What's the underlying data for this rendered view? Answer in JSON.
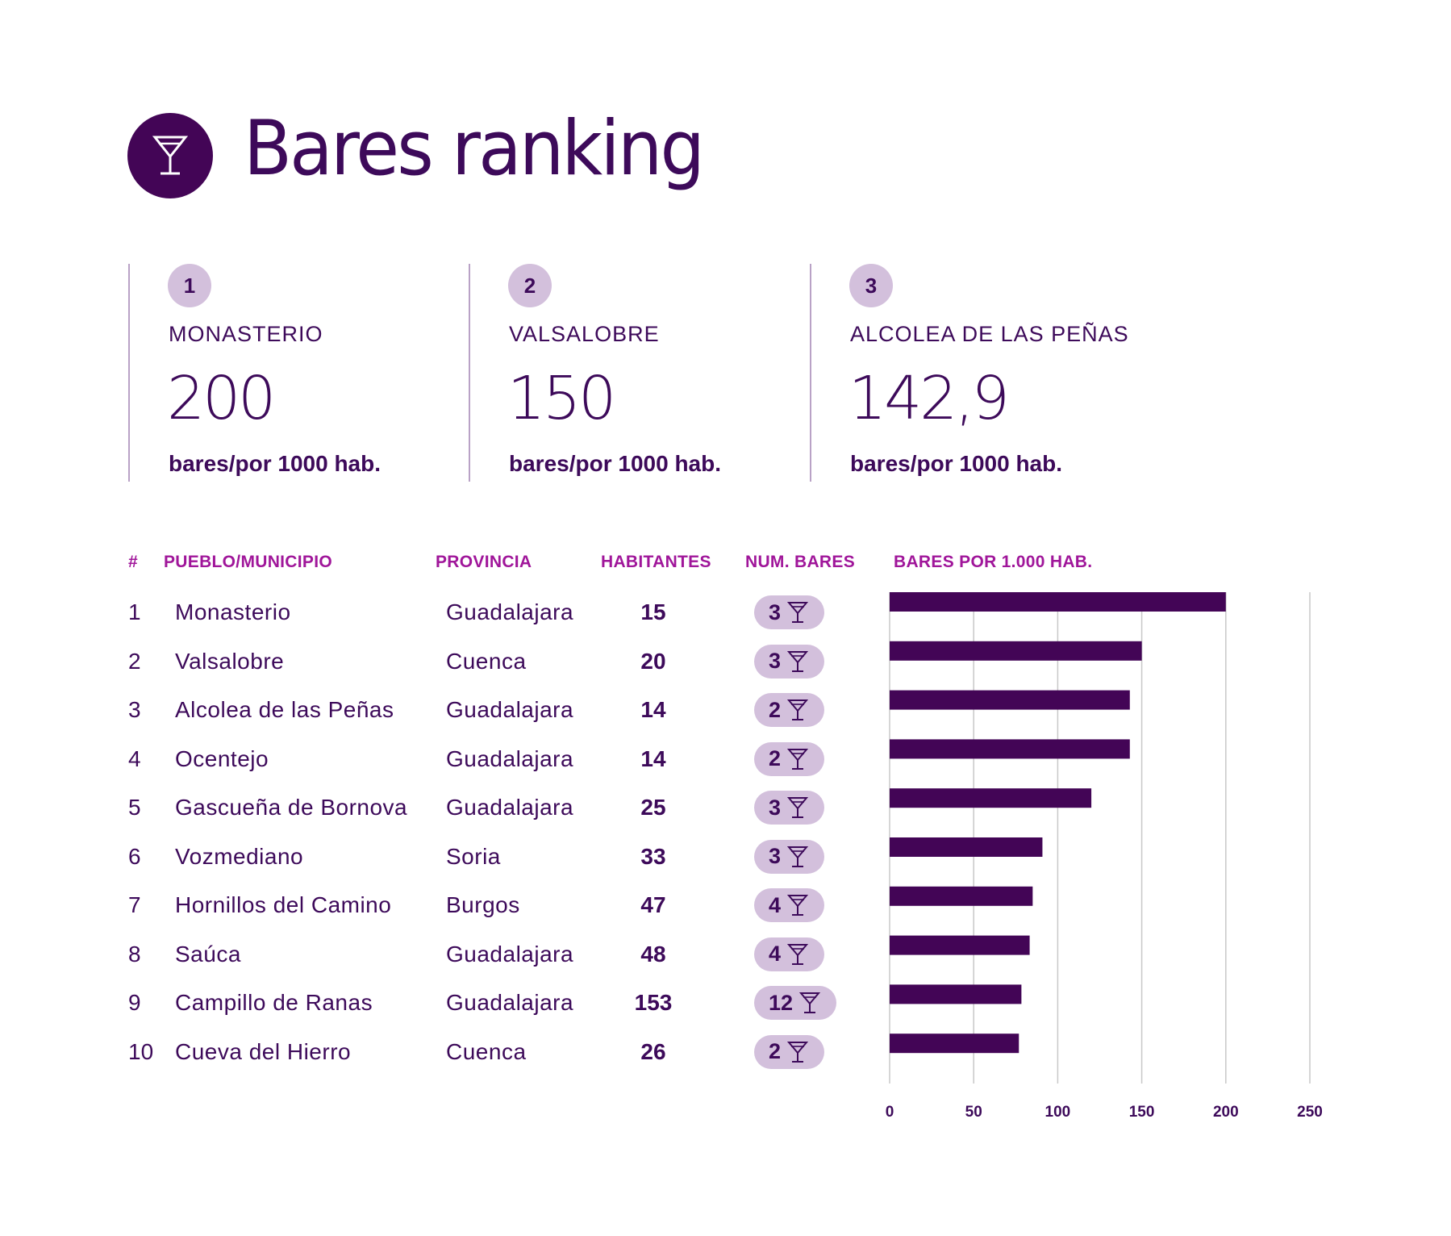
{
  "header": {
    "title": "Bares ranking",
    "icon": "cocktail-glass-icon"
  },
  "colors": {
    "primary": "#430556",
    "text": "#3d0a5a",
    "header_accent": "#a0169a",
    "pill_bg": "#d3c0dc",
    "grid": "#c8c8c8"
  },
  "top3": [
    {
      "rank": "1",
      "name": "MONASTERIO",
      "value": "200",
      "unit": "bares/por 1000 hab."
    },
    {
      "rank": "2",
      "name": "VALSALOBRE",
      "value": "150",
      "unit": "bares/por 1000 hab."
    },
    {
      "rank": "3",
      "name": "ALCOLEA DE LAS PEÑAS",
      "value": "142,9",
      "unit": "bares/por 1000 hab."
    }
  ],
  "table": {
    "headers": {
      "rank": "#",
      "name": "PUEBLO/MUNICIPIO",
      "province": "PROVINCIA",
      "population": "HABITANTES",
      "bars": "NUM. BARES",
      "ratio": "BARES POR 1.000 HAB."
    },
    "rows": [
      {
        "rank": "1",
        "name": "Monasterio",
        "province": "Guadalajara",
        "population": "15",
        "bars": "3"
      },
      {
        "rank": "2",
        "name": "Valsalobre",
        "province": "Cuenca",
        "population": "20",
        "bars": "3"
      },
      {
        "rank": "3",
        "name": "Alcolea de las Peñas",
        "province": "Guadalajara",
        "population": "14",
        "bars": "2"
      },
      {
        "rank": "4",
        "name": "Ocentejo",
        "province": "Guadalajara",
        "population": "14",
        "bars": "2"
      },
      {
        "rank": "5",
        "name": "Gascueña de Bornova",
        "province": "Guadalajara",
        "population": "25",
        "bars": "3"
      },
      {
        "rank": "6",
        "name": "Vozmediano",
        "province": "Soria",
        "population": "33",
        "bars": "3"
      },
      {
        "rank": "7",
        "name": "Hornillos del Camino",
        "province": "Burgos",
        "population": "47",
        "bars": "4"
      },
      {
        "rank": "8",
        "name": "Saúca",
        "province": "Guadalajara",
        "population": "48",
        "bars": "4"
      },
      {
        "rank": "9",
        "name": "Campillo de Ranas",
        "province": "Guadalajara",
        "population": "153",
        "bars": "12"
      },
      {
        "rank": "10",
        "name": "Cueva del Hierro",
        "province": "Cuenca",
        "population": "26",
        "bars": "2"
      }
    ]
  },
  "chart_data": {
    "type": "bar",
    "orientation": "horizontal",
    "title": "BARES POR 1.000 HAB.",
    "categories": [
      "Monasterio",
      "Valsalobre",
      "Alcolea de las Peñas",
      "Ocentejo",
      "Gascueña de Bornova",
      "Vozmediano",
      "Hornillos del Camino",
      "Saúca",
      "Campillo de Ranas",
      "Cueva del Hierro"
    ],
    "values": [
      200,
      150,
      142.9,
      142.9,
      120,
      90.9,
      85.1,
      83.3,
      78.4,
      76.9
    ],
    "xlabel": "",
    "ylabel": "",
    "xlim": [
      0,
      250
    ],
    "xticks": [
      "0",
      "50",
      "100",
      "150",
      "200",
      "250"
    ],
    "grid": true,
    "legend": "none"
  }
}
